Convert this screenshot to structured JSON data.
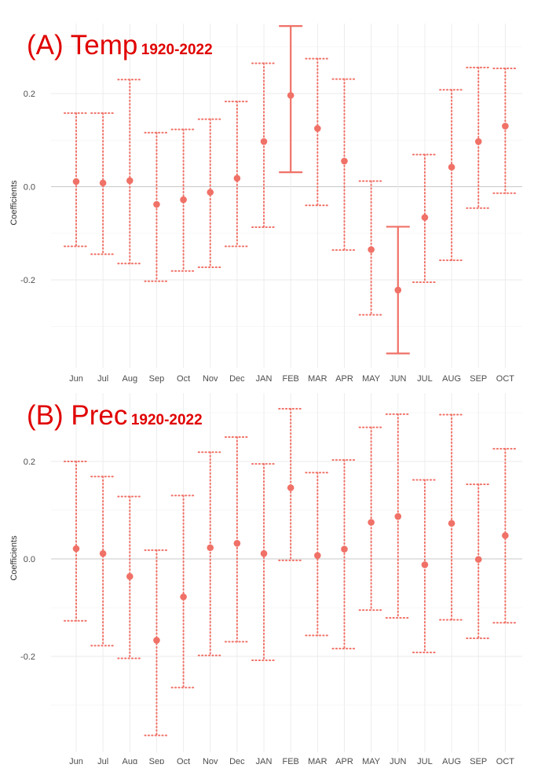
{
  "chart_data": [
    {
      "type": "scatter",
      "panel_label": "(A) Temp",
      "period": "1920-2022",
      "ylabel": "Coefficients",
      "xlabel": "",
      "categories": [
        "Jun",
        "Jul",
        "Aug",
        "Sep",
        "Oct",
        "Nov",
        "Dec",
        "JAN",
        "FEB",
        "MAR",
        "APR",
        "MAY",
        "JUN",
        "JUL",
        "AUG",
        "SEP",
        "OCT"
      ],
      "values": [
        0.011,
        0.008,
        0.013,
        -0.038,
        -0.028,
        -0.012,
        0.018,
        0.097,
        0.196,
        0.125,
        0.055,
        -0.135,
        -0.222,
        -0.066,
        0.042,
        0.097,
        0.13
      ],
      "lower": [
        -0.128,
        -0.145,
        -0.165,
        -0.203,
        -0.181,
        -0.173,
        -0.128,
        -0.087,
        0.031,
        -0.04,
        -0.136,
        -0.275,
        -0.358,
        -0.205,
        -0.158,
        -0.046,
        -0.014
      ],
      "upper": [
        0.158,
        0.158,
        0.23,
        0.116,
        0.123,
        0.145,
        0.183,
        0.265,
        0.345,
        0.275,
        0.231,
        0.012,
        -0.086,
        0.069,
        0.208,
        0.256,
        0.254
      ],
      "significant": [
        false,
        false,
        false,
        false,
        false,
        false,
        false,
        false,
        true,
        false,
        false,
        false,
        true,
        false,
        false,
        false,
        false
      ],
      "y_ticks": [
        -0.2,
        0.0,
        0.2
      ],
      "ylim": [
        -0.4,
        0.37
      ],
      "grid": true,
      "color": "#F07167",
      "zero_line_color": "#c8c8c8"
    },
    {
      "type": "scatter",
      "panel_label": "(B) Prec",
      "period": "1920-2022",
      "ylabel": "Coefficients",
      "xlabel": "",
      "categories": [
        "Jun",
        "Jul",
        "Aug",
        "Sep",
        "Oct",
        "Nov",
        "Dec",
        "JAN",
        "FEB",
        "MAR",
        "APR",
        "MAY",
        "JUN",
        "JUL",
        "AUG",
        "SEP",
        "OCT"
      ],
      "values": [
        0.021,
        0.011,
        -0.036,
        -0.167,
        -0.078,
        0.023,
        0.032,
        0.011,
        0.146,
        0.007,
        0.02,
        0.075,
        0.087,
        -0.012,
        0.073,
        -0.001,
        0.048
      ],
      "lower": [
        -0.127,
        -0.178,
        -0.204,
        -0.362,
        -0.264,
        -0.198,
        -0.17,
        -0.208,
        -0.003,
        -0.157,
        -0.184,
        -0.105,
        -0.121,
        -0.192,
        -0.125,
        -0.163,
        -0.131
      ],
      "upper": [
        0.2,
        0.169,
        0.128,
        0.018,
        0.13,
        0.219,
        0.25,
        0.195,
        0.308,
        0.177,
        0.203,
        0.27,
        0.297,
        0.162,
        0.296,
        0.153,
        0.226
      ],
      "significant": [
        false,
        false,
        false,
        false,
        false,
        false,
        false,
        false,
        false,
        false,
        false,
        false,
        false,
        false,
        false,
        false,
        false
      ],
      "y_ticks": [
        -0.2,
        0.0,
        0.2
      ],
      "ylim": [
        -0.4,
        0.33
      ],
      "grid": true,
      "color": "#F07167",
      "zero_line_color": "#c8c8c8"
    }
  ]
}
